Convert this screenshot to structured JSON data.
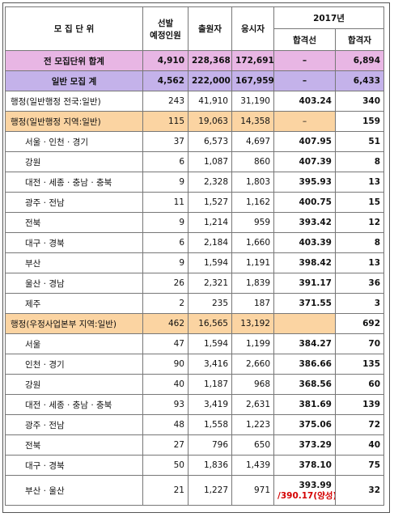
{
  "table": {
    "header": {
      "unit": "모 집 단 위",
      "planned": [
        "선발",
        "예정인원"
      ],
      "applicants": "출원자",
      "examinees": "응시자",
      "year": "2017년",
      "cutline": "합격선",
      "passed": "합격자"
    },
    "rows": [
      [
        "전 모집단위 합계",
        "4,910",
        "228,368",
        "172,691",
        "–",
        "6,894"
      ],
      [
        "일반 모집 계",
        "4,562",
        "222,000",
        "167,959",
        "–",
        "6,433"
      ],
      [
        "행정(일반행정 전국:일반)",
        "243",
        "41,910",
        "31,190",
        "403.24",
        "340"
      ],
      [
        "행정(일반행정 지역:일반)",
        "115",
        "19,063",
        "14,358",
        "–",
        "159"
      ],
      [
        "서울 · 인천 · 경기",
        "37",
        "6,573",
        "4,697",
        "407.95",
        "51"
      ],
      [
        "강원",
        "6",
        "1,087",
        "860",
        "407.39",
        "8"
      ],
      [
        "대전 · 세종 · 충남 · 충북",
        "9",
        "2,328",
        "1,803",
        "395.93",
        "13"
      ],
      [
        "광주 · 전남",
        "11",
        "1,527",
        "1,162",
        "400.75",
        "15"
      ],
      [
        "전북",
        "9",
        "1,214",
        "959",
        "393.42",
        "12"
      ],
      [
        "대구 · 경북",
        "6",
        "2,184",
        "1,660",
        "403.39",
        "8"
      ],
      [
        "부산",
        "9",
        "1,594",
        "1,191",
        "398.42",
        "13"
      ],
      [
        "울산 · 경남",
        "26",
        "2,321",
        "1,839",
        "391.17",
        "36"
      ],
      [
        "제주",
        "2",
        "235",
        "187",
        "371.55",
        "3"
      ],
      [
        "행정(우정사업본부 지역:일반)",
        "462",
        "16,565",
        "13,192",
        "",
        "692"
      ],
      [
        "서울",
        "47",
        "1,594",
        "1,199",
        "384.27",
        "70"
      ],
      [
        "인천 · 경기",
        "90",
        "3,416",
        "2,660",
        "386.66",
        "135"
      ],
      [
        "강원",
        "40",
        "1,187",
        "968",
        "368.56",
        "60"
      ],
      [
        "대전 · 세종 · 충남 · 충북",
        "93",
        "3,419",
        "2,631",
        "381.69",
        "139"
      ],
      [
        "광주 · 전남",
        "48",
        "1,558",
        "1,223",
        "375.06",
        "72"
      ],
      [
        "전북",
        "27",
        "796",
        "650",
        "373.29",
        "40"
      ],
      [
        "대구 · 경북",
        "50",
        "1,836",
        "1,439",
        "378.10",
        "75"
      ],
      [
        "부산 · 울산",
        "21",
        "1,227",
        "971",
        [
          "393.99",
          "/390.17(양성)"
        ],
        "32"
      ]
    ]
  }
}
